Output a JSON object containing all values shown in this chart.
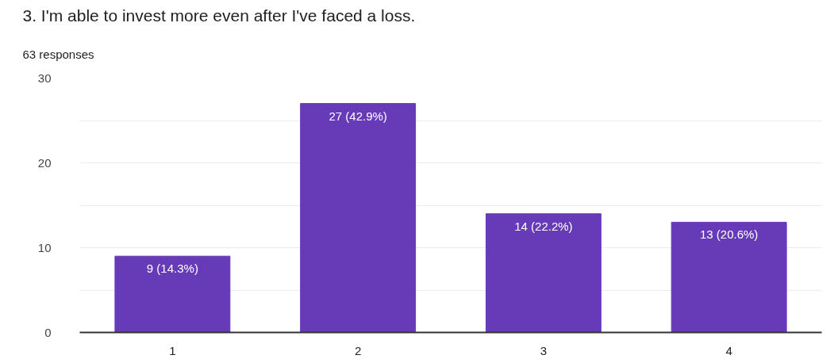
{
  "chart_data": {
    "type": "bar",
    "title": "3. I'm able to invest more even after I've faced a loss.",
    "subtitle": "63 responses",
    "categories": [
      "1",
      "2",
      "3",
      "4"
    ],
    "values": [
      9,
      27,
      14,
      13
    ],
    "color": "#673ab7",
    "value_labels": [
      "9 (14.3%)",
      "27 (42.9%)",
      "14 (22.2%)",
      "13 (20.6%)"
    ],
    "ylim": [
      0,
      30
    ],
    "yticks": [
      0,
      {
        "value": 5,
        "label": null
      },
      10,
      {
        "value": 15,
        "label": null
      },
      20,
      {
        "value": 25,
        "label": null
      },
      30
    ],
    "grid": "y"
  }
}
